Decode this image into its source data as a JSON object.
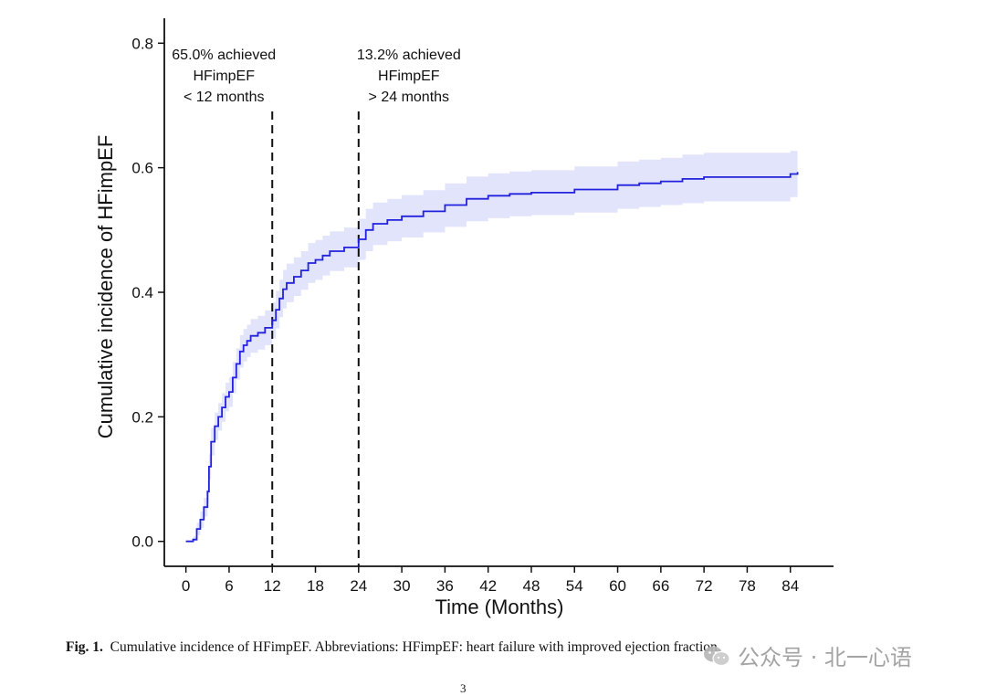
{
  "chart_data": {
    "type": "line",
    "title": "",
    "xlabel": "Time (Months)",
    "ylabel": "Cumulative incidence of HFimpEF",
    "xlim": [
      -3,
      90
    ],
    "ylim": [
      -0.04,
      0.84
    ],
    "xticks": [
      0,
      6,
      12,
      18,
      24,
      30,
      36,
      42,
      48,
      54,
      60,
      66,
      72,
      78,
      84
    ],
    "yticks": [
      0.0,
      0.2,
      0.4,
      0.6,
      0.8
    ],
    "ytick_labels": [
      "0.0",
      "0.2",
      "0.4",
      "0.6",
      "0.8"
    ],
    "grid": false,
    "legend": "none",
    "colors": {
      "line": "#2222dd",
      "ci_band": "#e2e4fb",
      "reference": "#111111"
    },
    "series": [
      {
        "name": "",
        "step": true,
        "x": [
          0,
          1,
          1.5,
          2,
          2.5,
          3,
          3.2,
          3.5,
          4,
          4.5,
          5,
          5.5,
          6,
          6.5,
          7,
          7.5,
          8,
          8.5,
          9,
          10,
          11,
          12,
          12.5,
          13,
          13.5,
          14,
          15,
          16,
          17,
          18,
          19,
          20,
          22,
          24,
          25,
          26,
          28,
          30,
          33,
          36,
          39,
          42,
          45,
          48,
          54,
          60,
          63,
          66,
          69,
          72,
          78,
          84,
          85
        ],
        "y": [
          0.0,
          0.003,
          0.02,
          0.035,
          0.055,
          0.08,
          0.12,
          0.16,
          0.185,
          0.2,
          0.215,
          0.232,
          0.24,
          0.263,
          0.285,
          0.305,
          0.315,
          0.322,
          0.33,
          0.335,
          0.343,
          0.355,
          0.372,
          0.39,
          0.405,
          0.415,
          0.425,
          0.435,
          0.447,
          0.452,
          0.459,
          0.466,
          0.472,
          0.485,
          0.5,
          0.51,
          0.516,
          0.522,
          0.53,
          0.54,
          0.55,
          0.555,
          0.558,
          0.56,
          0.565,
          0.572,
          0.575,
          0.578,
          0.582,
          0.585,
          0.585,
          0.59,
          0.593
        ],
        "ci_lower": [
          0.0,
          0.0,
          0.01,
          0.022,
          0.04,
          0.062,
          0.1,
          0.138,
          0.163,
          0.178,
          0.192,
          0.209,
          0.216,
          0.238,
          0.26,
          0.279,
          0.289,
          0.296,
          0.303,
          0.308,
          0.315,
          0.326,
          0.342,
          0.36,
          0.374,
          0.384,
          0.394,
          0.404,
          0.415,
          0.42,
          0.427,
          0.434,
          0.44,
          0.452,
          0.466,
          0.476,
          0.482,
          0.488,
          0.496,
          0.505,
          0.514,
          0.519,
          0.522,
          0.524,
          0.528,
          0.534,
          0.537,
          0.54,
          0.543,
          0.546,
          0.546,
          0.553,
          0.556
        ],
        "ci_upper": [
          0.0,
          0.008,
          0.03,
          0.048,
          0.07,
          0.098,
          0.14,
          0.182,
          0.207,
          0.222,
          0.238,
          0.255,
          0.264,
          0.288,
          0.31,
          0.331,
          0.341,
          0.348,
          0.357,
          0.362,
          0.371,
          0.384,
          0.402,
          0.42,
          0.436,
          0.446,
          0.456,
          0.466,
          0.479,
          0.484,
          0.491,
          0.498,
          0.504,
          0.518,
          0.534,
          0.544,
          0.55,
          0.556,
          0.564,
          0.575,
          0.586,
          0.591,
          0.594,
          0.596,
          0.602,
          0.61,
          0.613,
          0.616,
          0.621,
          0.624,
          0.624,
          0.627,
          0.63
        ]
      }
    ],
    "reference_lines": [
      {
        "x": 12,
        "style": "dashed",
        "label_lines": [
          "65.0% achieved",
          "HFimpEF",
          "< 12 months"
        ]
      },
      {
        "x": 24,
        "style": "dashed",
        "label_lines": [
          "13.2% achieved",
          "HFimpEF",
          "> 24 months"
        ]
      }
    ]
  },
  "caption": {
    "label": "Fig. 1.",
    "text": "Cumulative incidence of HFimpEF. Abbreviations: HFimpEF: heart failure with improved ejection fraction."
  },
  "page_number": "3",
  "watermark": {
    "icon": "wechat-icon",
    "text": "公众号 · 北一心语"
  }
}
